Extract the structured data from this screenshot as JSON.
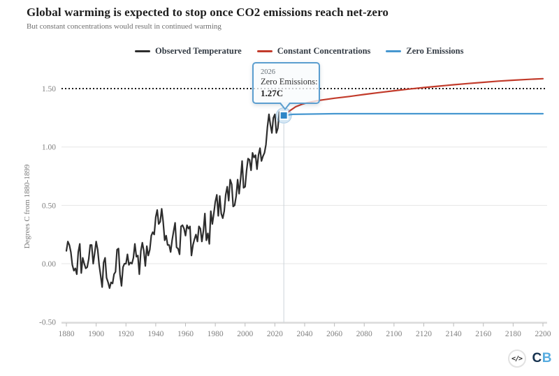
{
  "page": {
    "title": "Global warming is expected to stop once CO2 emissions reach net-zero",
    "subtitle": "But constant concentrations would result in continued warming"
  },
  "legend": {
    "items": [
      {
        "label": "Observed Temperature",
        "color": "#2d2d2d"
      },
      {
        "label": "Constant Concentrations",
        "color": "#c23b2b"
      },
      {
        "label": "Zero Emissions",
        "color": "#4697d0"
      }
    ]
  },
  "tooltip": {
    "year": "2026",
    "series": "Zero Emissions:",
    "value": "1.27C"
  },
  "footer": {
    "code_icon": "</>",
    "logo_c": "C",
    "logo_b": "B",
    "logo_c_color": "#16324f",
    "logo_b_color": "#57ace0"
  },
  "colors": {
    "observed": "#2d2d2d",
    "constant": "#c23b2b",
    "zero": "#4697d0",
    "threshold": "#1a1a1a",
    "grid": "#e5e5e5",
    "axis": "#bbbbbb",
    "tick_label": "#808080",
    "axis_title": "#777777",
    "tooltip_border": "#5b9ecf",
    "marker_fill": "#2f86c7",
    "halo": "rgba(120,175,220,0.30)",
    "halo_ring": "rgba(90,155,205,0.45)",
    "crosshair": "#ccd4da"
  },
  "chart_data": {
    "type": "line",
    "title": "Global warming is expected to stop once CO2 emissions reach net-zero",
    "xlabel": "",
    "ylabel": "Degrees C from 1880-1899",
    "xlim": [
      1871,
      2208
    ],
    "ylim": [
      -0.62,
      1.68
    ],
    "x_ticks": [
      1880,
      1900,
      1920,
      1940,
      1960,
      1980,
      2000,
      2020,
      2040,
      2060,
      2080,
      2100,
      2120,
      2140,
      2160,
      2180,
      2200
    ],
    "y_ticks": [
      "1.50",
      "1.00",
      "0.50",
      "0.00",
      "-0.50"
    ],
    "grid": "horizontal",
    "legend_position": "top",
    "threshold_line": {
      "value": 1.5,
      "style": "dotted"
    },
    "marker": {
      "x": 2026,
      "y": 1.27,
      "series": "Zero Emissions"
    },
    "series": [
      {
        "name": "Observed Temperature",
        "color": "#2d2d2d",
        "x_start": 1880,
        "x_step": 1,
        "values": [
          0.11,
          0.19,
          0.16,
          0.1,
          -0.01,
          -0.06,
          -0.04,
          -0.09,
          0.1,
          0.17,
          -0.08,
          0.05,
          0.0,
          -0.04,
          -0.03,
          0.04,
          0.16,
          0.16,
          0.0,
          0.09,
          0.19,
          0.12,
          -0.01,
          -0.1,
          -0.2,
          0.01,
          0.05,
          -0.12,
          -0.16,
          -0.21,
          -0.16,
          -0.17,
          -0.09,
          -0.07,
          0.12,
          0.13,
          -0.09,
          -0.19,
          -0.03,
          0.0,
          0.0,
          0.08,
          -0.01,
          0.01,
          0.0,
          0.05,
          0.17,
          0.06,
          0.07,
          -0.09,
          0.11,
          0.18,
          0.11,
          -0.02,
          0.15,
          0.07,
          0.12,
          0.24,
          0.27,
          0.25,
          0.4,
          0.46,
          0.34,
          0.36,
          0.47,
          0.36,
          0.2,
          0.24,
          0.16,
          0.16,
          0.1,
          0.2,
          0.28,
          0.35,
          0.14,
          0.13,
          0.08,
          0.32,
          0.33,
          0.3,
          0.24,
          0.33,
          0.3,
          0.32,
          0.07,
          0.16,
          0.21,
          0.25,
          0.19,
          0.32,
          0.3,
          0.19,
          0.28,
          0.43,
          0.2,
          0.26,
          0.17,
          0.45,
          0.34,
          0.43,
          0.53,
          0.59,
          0.41,
          0.58,
          0.43,
          0.39,
          0.45,
          0.59,
          0.66,
          0.54,
          0.72,
          0.68,
          0.49,
          0.5,
          0.58,
          0.72,
          0.6,
          0.73,
          0.88,
          0.65,
          0.66,
          0.8,
          0.9,
          0.89,
          0.8,
          0.95,
          0.91,
          0.93,
          0.81,
          0.93,
          0.99,
          0.88,
          0.92,
          0.95,
          1.02,
          1.17,
          1.28,
          1.19,
          1.12,
          1.25,
          1.28,
          1.12,
          1.16,
          1.3,
          1.29,
          1.28,
          1.27
        ]
      },
      {
        "name": "Constant Concentrations",
        "color": "#c23b2b",
        "points": [
          [
            2026,
            1.27
          ],
          [
            2030,
            1.31
          ],
          [
            2034,
            1.345
          ],
          [
            2038,
            1.365
          ],
          [
            2042,
            1.38
          ],
          [
            2050,
            1.4
          ],
          [
            2060,
            1.418
          ],
          [
            2070,
            1.433
          ],
          [
            2080,
            1.45
          ],
          [
            2090,
            1.466
          ],
          [
            2100,
            1.482
          ],
          [
            2110,
            1.496
          ],
          [
            2120,
            1.509
          ],
          [
            2130,
            1.521
          ],
          [
            2140,
            1.533
          ],
          [
            2150,
            1.544
          ],
          [
            2160,
            1.554
          ],
          [
            2170,
            1.564
          ],
          [
            2180,
            1.572
          ],
          [
            2190,
            1.579
          ],
          [
            2200,
            1.585
          ]
        ]
      },
      {
        "name": "Zero Emissions",
        "color": "#4697d0",
        "points": [
          [
            2026,
            1.27
          ],
          [
            2032,
            1.28
          ],
          [
            2060,
            1.285
          ],
          [
            2120,
            1.285
          ],
          [
            2200,
            1.285
          ]
        ]
      }
    ]
  }
}
